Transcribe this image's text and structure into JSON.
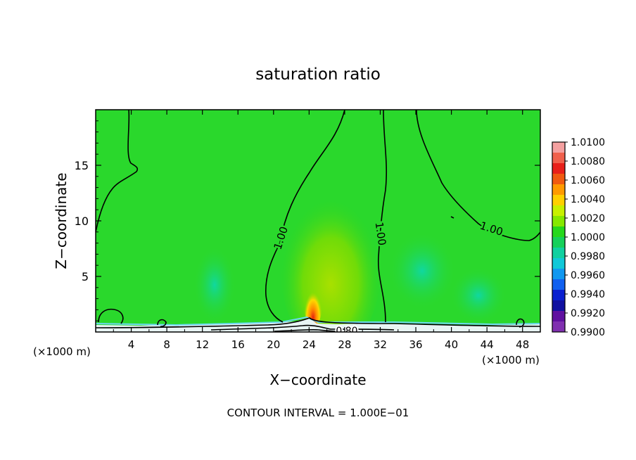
{
  "chart_data": {
    "type": "heatmap",
    "title": "saturation ratio",
    "xlabel": "X−coordinate",
    "ylabel": "Z−coordinate",
    "x_unit_left": "(×1000 m)",
    "x_unit_right": "(×1000 m)",
    "footer": "CONTOUR INTERVAL = 1.000E−01",
    "xlim": [
      0,
      50
    ],
    "ylim": [
      0,
      20
    ],
    "x_ticks": [
      4,
      8,
      12,
      16,
      20,
      24,
      28,
      32,
      36,
      40,
      44,
      48
    ],
    "y_ticks": [
      5,
      10,
      15
    ],
    "colorbar": {
      "labels": [
        "1.0100",
        "1.0080",
        "1.0060",
        "1.0040",
        "1.0020",
        "1.0000",
        "0.9980",
        "0.9960",
        "0.9940",
        "0.9920",
        "0.9900"
      ],
      "colors": [
        "#f4a0a0",
        "#f0604c",
        "#e8201a",
        "#f05a10",
        "#ff9a00",
        "#ffd000",
        "#c8f000",
        "#86e800",
        "#26d81c",
        "#16d05a",
        "#10d0a0",
        "#10c8d8",
        "#1098f0",
        "#1060f0",
        "#0a20d0",
        "#1010a0",
        "#6010a0",
        "#8030b0"
      ]
    },
    "background_value": "1.0000",
    "contour_labels": [
      "1.00",
      "1.00",
      "1.00",
      "0.80"
    ]
  }
}
